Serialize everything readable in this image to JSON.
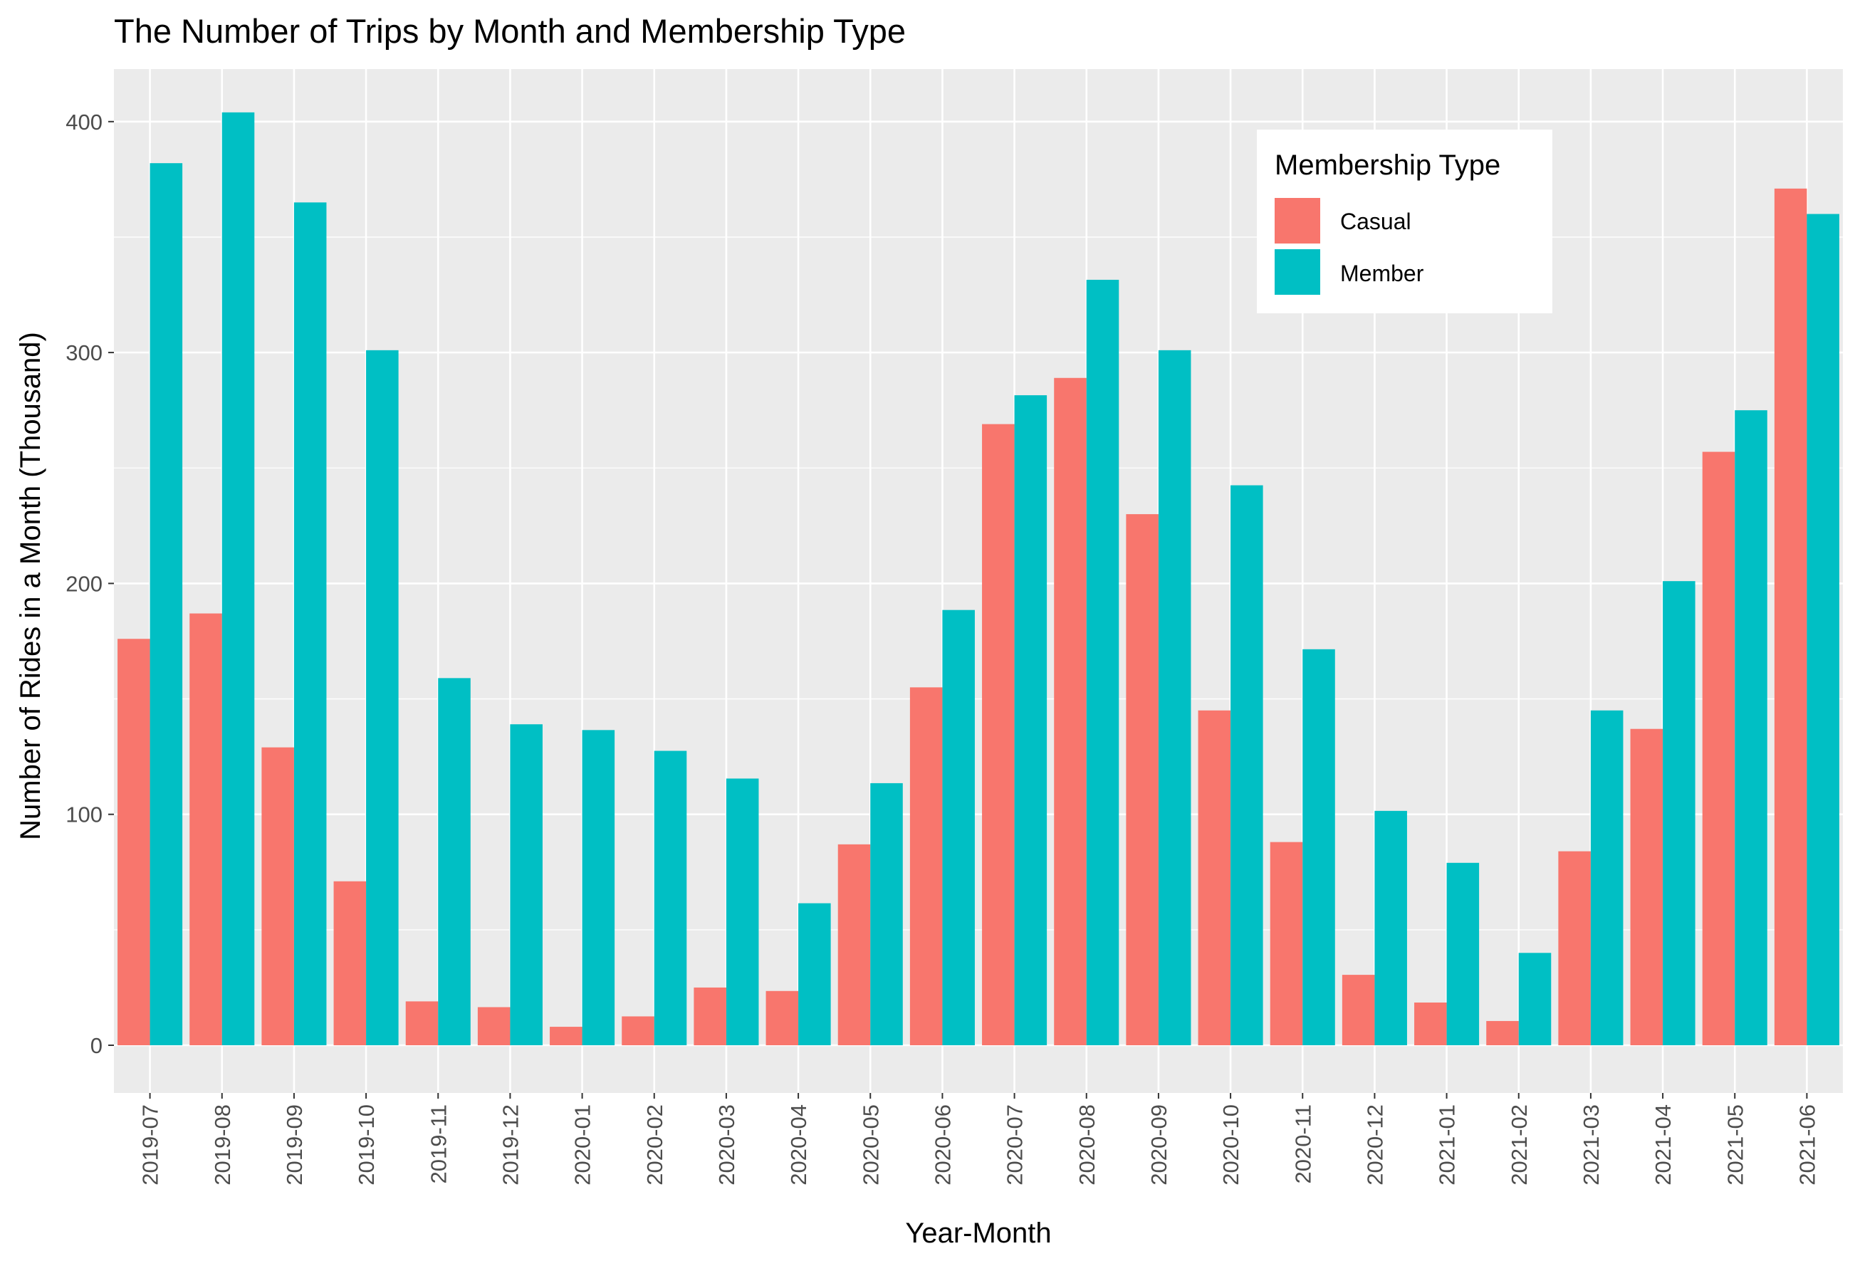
{
  "chart_data": {
    "type": "bar",
    "title": "The Number of Trips by Month and Membership Type",
    "xlabel": "Year-Month",
    "ylabel": "Number of Rides in a Month (Thousand)",
    "ylim": [
      -20,
      420
    ],
    "yticks": [
      0,
      100,
      200,
      300,
      400
    ],
    "grid": true,
    "legend": {
      "title": "Membership Type",
      "position": "top-right (inside plot)"
    },
    "categories": [
      "2019-07",
      "2019-08",
      "2019-09",
      "2019-10",
      "2019-11",
      "2019-12",
      "2020-01",
      "2020-02",
      "2020-03",
      "2020-04",
      "2020-05",
      "2020-06",
      "2020-07",
      "2020-08",
      "2020-09",
      "2020-10",
      "2020-11",
      "2020-12",
      "2021-01",
      "2021-02",
      "2021-03",
      "2021-04",
      "2021-05",
      "2021-06"
    ],
    "series": [
      {
        "name": "Casual",
        "color": "#F8766D",
        "values": [
          176,
          187,
          129,
          71,
          19,
          16.5,
          8,
          12.5,
          25,
          23.5,
          87,
          155,
          269,
          289,
          230,
          145,
          88,
          30.5,
          18.5,
          10.5,
          84,
          137,
          257,
          371
        ]
      },
      {
        "name": "Member",
        "color": "#00BFC4",
        "values": [
          382,
          404,
          365,
          301,
          159,
          139,
          136.5,
          127.5,
          115.5,
          61.5,
          113.5,
          188.5,
          281.5,
          331.5,
          301,
          242.5,
          171.5,
          101.5,
          79,
          40,
          145,
          201,
          275,
          360
        ]
      }
    ],
    "colors": {
      "panel": "#EBEBEB",
      "grid": "#FFFFFF",
      "background": "#FFFFFF"
    }
  }
}
